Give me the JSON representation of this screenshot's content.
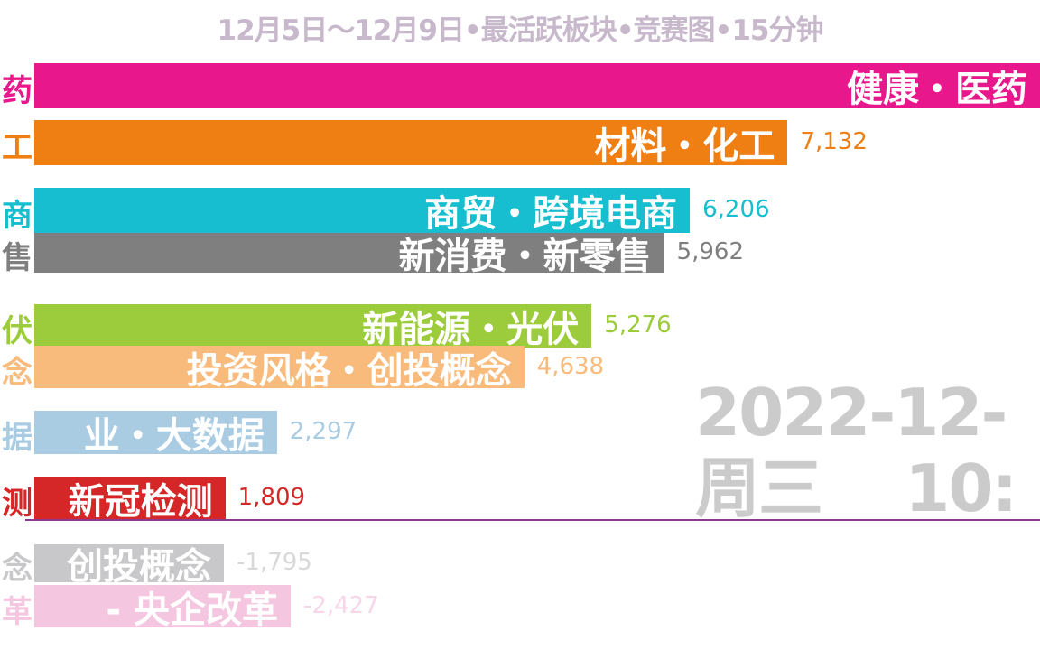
{
  "chart_data": {
    "type": "bar",
    "orientation": "horizontal",
    "title": "12月5日～12月9日•最活跃板块•竞赛图•15分钟",
    "date_overlay": [
      "2022-12-",
      "周三    10:"
    ],
    "bars": [
      {
        "name": "健康・医药",
        "side": "药",
        "value": null,
        "value_label": "",
        "color": "#e8188c",
        "faded": false
      },
      {
        "name": "材料・化工",
        "side": "工",
        "value": 7132,
        "value_label": "7,132",
        "color": "#f07f13",
        "faded": false
      },
      {
        "name": "商贸・跨境电商",
        "side": "商",
        "value": 6206,
        "value_label": "6,206",
        "color": "#17becf",
        "faded": false
      },
      {
        "name": "新消费・新零售",
        "side": "售",
        "value": 5962,
        "value_label": "5,962",
        "color": "#7f7f7f",
        "faded": false
      },
      {
        "name": "新能源・光伏",
        "side": "伏",
        "value": 5276,
        "value_label": "5,276",
        "color": "#9ccc3c",
        "faded": false
      },
      {
        "name": "投资风格・创投概念",
        "side": "念",
        "value": 4638,
        "value_label": "4,638",
        "color": "#f8bb7c",
        "faded": false
      },
      {
        "name": "业・大数据",
        "side": "据",
        "value": 2297,
        "value_label": "2,297",
        "color": "#a9cce3",
        "faded": false
      },
      {
        "name": "新冠检测",
        "side": "测",
        "value": 1809,
        "value_label": "1,809",
        "color": "#d62728",
        "faded": false
      },
      {
        "name": "创投概念",
        "side": "念",
        "value": -1795,
        "value_label": "-1,795",
        "color": "#c8c8ca",
        "faded": true
      },
      {
        "name": "- 央企改革",
        "side": "革",
        "value": -2427,
        "value_label": "-2,427",
        "color": "#f4c6e0",
        "faded": true
      }
    ]
  }
}
